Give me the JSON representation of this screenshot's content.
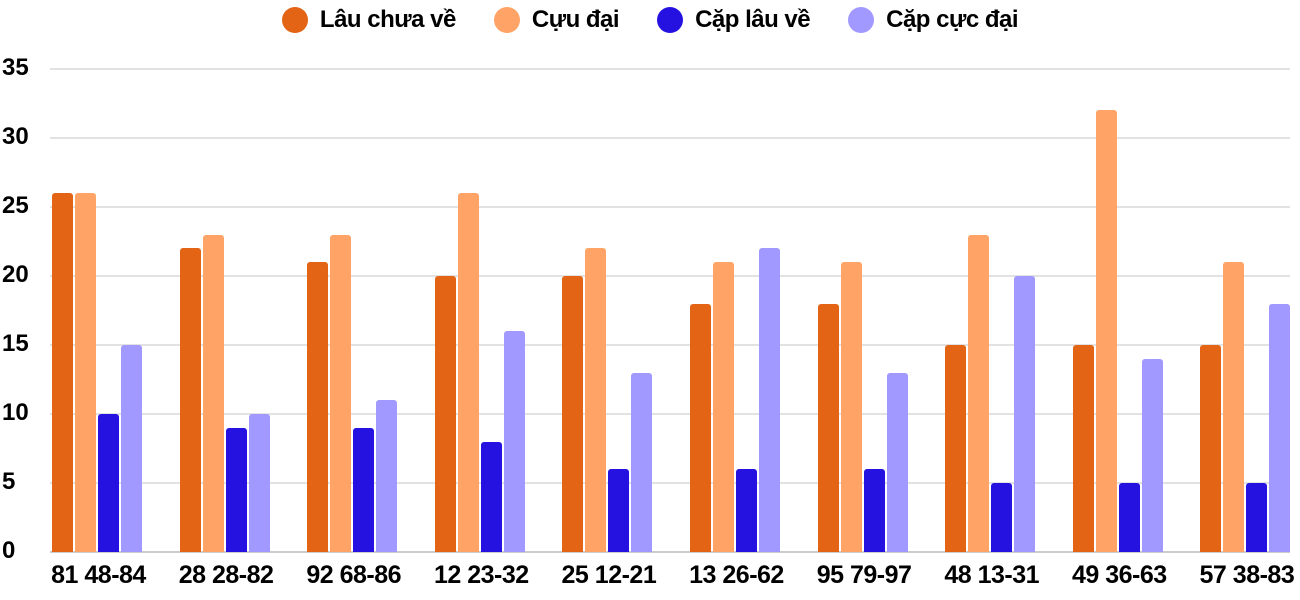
{
  "chart_data": {
    "type": "bar",
    "title": "",
    "xlabel": "",
    "ylabel": "",
    "ylim": [
      0,
      35
    ],
    "yticks": [
      0,
      5,
      10,
      15,
      20,
      25,
      30,
      35
    ],
    "grid": true,
    "legend_position": "top",
    "categories": [
      "81 48-84",
      "28 28-82",
      "92 68-86",
      "12 23-32",
      "25 12-21",
      "13 26-62",
      "95 79-97",
      "48 13-31",
      "49 36-63",
      "57 38-83"
    ],
    "series": [
      {
        "name": "Lâu chưa về",
        "color": "#e36414",
        "values": [
          26,
          22,
          21,
          20,
          20,
          18,
          18,
          15,
          15,
          15
        ]
      },
      {
        "name": "Cựu đại",
        "color": "#ffa366",
        "values": [
          26,
          23,
          23,
          26,
          22,
          21,
          21,
          23,
          32,
          21
        ]
      },
      {
        "name": "Cặp lâu về",
        "color": "#2612e0",
        "values": [
          10,
          9,
          9,
          8,
          6,
          6,
          6,
          5,
          5,
          5
        ]
      },
      {
        "name": "Cặp cực đại",
        "color": "#a199ff",
        "values": [
          15,
          10,
          11,
          16,
          13,
          22,
          13,
          20,
          14,
          18
        ]
      }
    ]
  },
  "legend": {
    "items": [
      {
        "label": "Lâu chưa về",
        "color": "#e36414"
      },
      {
        "label": "Cựu đại",
        "color": "#ffa366"
      },
      {
        "label": "Cặp lâu về",
        "color": "#2612e0"
      },
      {
        "label": "Cặp cực đại",
        "color": "#a199ff"
      }
    ]
  },
  "yaxis": {
    "labels": [
      "0",
      "5",
      "10",
      "15",
      "20",
      "25",
      "30",
      "35"
    ]
  },
  "xaxis": {
    "labels": [
      "81 48-84",
      "28 28-82",
      "92 68-86",
      "12 23-32",
      "25 12-21",
      "13 26-62",
      "95 79-97",
      "48 13-31",
      "49 36-63",
      "57 38-83"
    ]
  }
}
